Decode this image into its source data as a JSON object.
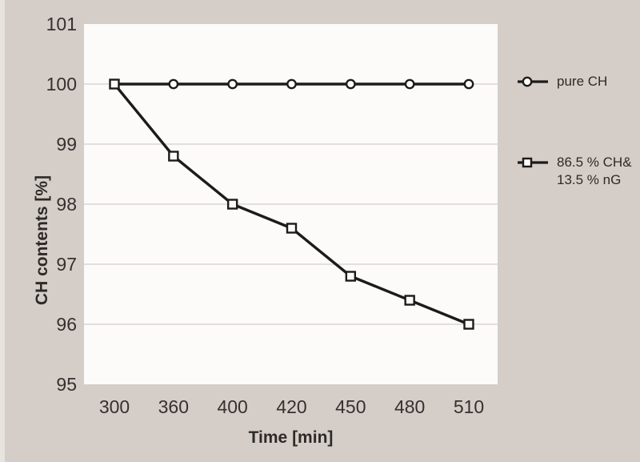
{
  "chart_data": {
    "type": "line",
    "title": "",
    "xlabel": "Time [min]",
    "ylabel": "CH contents [%]",
    "x_categories": [
      "300",
      "360",
      "400",
      "420",
      "450",
      "480",
      "510"
    ],
    "y_tick_labels": [
      "101",
      "100",
      "99",
      "98",
      "97",
      "96",
      "95"
    ],
    "ylim": [
      95,
      101
    ],
    "grid": "horizontal gridlines at each integer",
    "legend_position": "right",
    "series": [
      {
        "name": "pure CH",
        "marker": "circle",
        "values": [
          100,
          100,
          100,
          100,
          100,
          100,
          100
        ],
        "legend_lines": [
          "pure CH"
        ]
      },
      {
        "name": "86.5 % CH& 13.5 % nG",
        "marker": "square",
        "values": [
          100,
          98.8,
          98.0,
          97.6,
          96.8,
          96.4,
          96.0
        ],
        "legend_lines": [
          "86.5 % CH&",
          "13.5 % nG"
        ]
      }
    ],
    "colors": {
      "background": "#d5cdc8",
      "plot_background": "#fcfbfa",
      "gridline": "#d9d6d2",
      "line": "#1d1b19",
      "text": "#343130"
    }
  }
}
